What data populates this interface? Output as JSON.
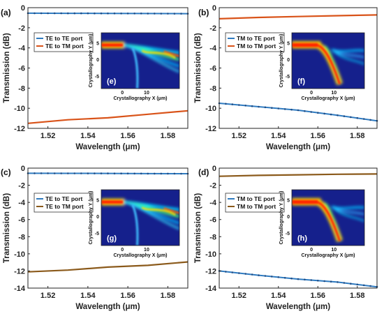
{
  "colors": {
    "blue": "#2f7bc0",
    "orange": "#d95319",
    "olive": "#8b5a1b",
    "inset_bg": "#15208c"
  },
  "chart_data": [
    {
      "type": "line",
      "panel_label": "(a)",
      "xlabel": "Wavelength (μm)",
      "ylabel": "Transmission (dB)",
      "xlim": [
        1.51,
        1.59
      ],
      "ylim": [
        -12,
        0
      ],
      "xticks": [
        "1.52",
        "1.54",
        "1.56",
        "1.58"
      ],
      "yticks": [
        "0",
        "-2",
        "-4",
        "-6",
        "-8",
        "-10",
        "-12"
      ],
      "grid": false,
      "legend_position": "upper-left",
      "series": [
        {
          "name": "TE to TE port",
          "color": "#2f7bc0",
          "markers": true,
          "x": [
            1.51,
            1.53,
            1.55,
            1.57,
            1.59
          ],
          "y": [
            -0.55,
            -0.56,
            -0.57,
            -0.58,
            -0.6
          ]
        },
        {
          "name": "TE to TM port",
          "color": "#d95319",
          "markers": false,
          "x": [
            1.51,
            1.53,
            1.55,
            1.57,
            1.59
          ],
          "y": [
            -11.5,
            -11.15,
            -10.95,
            -10.6,
            -10.25
          ]
        }
      ],
      "inset": {
        "label": "(e)",
        "xlabel": "Crystallography X (μm)",
        "ylabel": "Crystallography Y (μm)",
        "xticks": [
          "0",
          "10"
        ],
        "yticks": [
          "5",
          "0",
          "-5"
        ],
        "pattern": "e"
      }
    },
    {
      "type": "line",
      "panel_label": "(b)",
      "xlabel": "Wavelength (μm)",
      "ylabel": "Transmission (dB)",
      "xlim": [
        1.51,
        1.59
      ],
      "ylim": [
        -12,
        0
      ],
      "xticks": [
        "1.52",
        "1.54",
        "1.56",
        "1.58"
      ],
      "yticks": [
        "0",
        "-2",
        "-4",
        "-6",
        "-8",
        "-10",
        "-12"
      ],
      "grid": false,
      "legend_position": "upper-left",
      "series": [
        {
          "name": "TM to TE port",
          "color": "#2f7bc0",
          "markers": true,
          "x": [
            1.51,
            1.53,
            1.55,
            1.57,
            1.59
          ],
          "y": [
            -9.5,
            -9.85,
            -10.2,
            -10.7,
            -11.25
          ]
        },
        {
          "name": "TM to TM port",
          "color": "#d95319",
          "markers": false,
          "x": [
            1.51,
            1.53,
            1.55,
            1.57,
            1.59
          ],
          "y": [
            -1.1,
            -0.97,
            -0.88,
            -0.8,
            -0.72
          ]
        }
      ],
      "inset": {
        "label": "(f)",
        "xlabel": "Crystallography X (μm)",
        "ylabel": "Crystallography Y (μm)",
        "xticks": [
          "0",
          "10"
        ],
        "yticks": [
          "5",
          "0",
          "-5"
        ],
        "pattern": "f"
      }
    },
    {
      "type": "line",
      "panel_label": "(c)",
      "xlabel": "Wavelength (μm)",
      "ylabel": "Transmission (dB)",
      "xlim": [
        1.51,
        1.59
      ],
      "ylim": [
        -14,
        0
      ],
      "xticks": [
        "1.52",
        "1.54",
        "1.56",
        "1.58"
      ],
      "yticks": [
        "0",
        "-2",
        "-4",
        "-6",
        "-8",
        "-10",
        "-12",
        "-14"
      ],
      "grid": false,
      "legend_position": "upper-left",
      "series": [
        {
          "name": "TE to TE port",
          "color": "#2f7bc0",
          "markers": true,
          "x": [
            1.51,
            1.53,
            1.55,
            1.57,
            1.59
          ],
          "y": [
            -0.6,
            -0.61,
            -0.62,
            -0.64,
            -0.65
          ]
        },
        {
          "name": "TE to TM port",
          "color": "#8b5a1b",
          "markers": false,
          "x": [
            1.51,
            1.53,
            1.55,
            1.57,
            1.59
          ],
          "y": [
            -12.1,
            -11.9,
            -11.55,
            -11.35,
            -10.95
          ]
        }
      ],
      "inset": {
        "label": "(g)",
        "xlabel": "Crystallography X (μm)",
        "ylabel": "Crystallography Y (μm)",
        "xticks": [
          "0",
          "10"
        ],
        "yticks": [
          "5",
          "0",
          "-5"
        ],
        "pattern": "e"
      }
    },
    {
      "type": "line",
      "panel_label": "(d)",
      "xlabel": "Wavelength (μm)",
      "ylabel": "Transmission (dB)",
      "xlim": [
        1.51,
        1.59
      ],
      "ylim": [
        -14,
        0
      ],
      "xticks": [
        "1.52",
        "1.54",
        "1.56",
        "1.58"
      ],
      "yticks": [
        "0",
        "-2",
        "-4",
        "-6",
        "-8",
        "-10",
        "-12",
        "-14"
      ],
      "grid": false,
      "legend_position": "upper-left",
      "series": [
        {
          "name": "TM to TE port",
          "color": "#2f7bc0",
          "markers": true,
          "x": [
            1.51,
            1.53,
            1.55,
            1.57,
            1.59
          ],
          "y": [
            -12.0,
            -12.5,
            -12.95,
            -13.3,
            -13.85
          ]
        },
        {
          "name": "TM to TM port",
          "color": "#8b5a1b",
          "markers": false,
          "x": [
            1.51,
            1.53,
            1.55,
            1.57,
            1.59
          ],
          "y": [
            -0.95,
            -0.85,
            -0.78,
            -0.72,
            -0.68
          ]
        }
      ],
      "inset": {
        "label": "(h)",
        "xlabel": "Crystallography X (μm)",
        "ylabel": "Crystallography Y (μm)",
        "xticks": [
          "0",
          "10"
        ],
        "yticks": [
          "5",
          "0",
          "-5"
        ],
        "pattern": "f"
      }
    }
  ]
}
